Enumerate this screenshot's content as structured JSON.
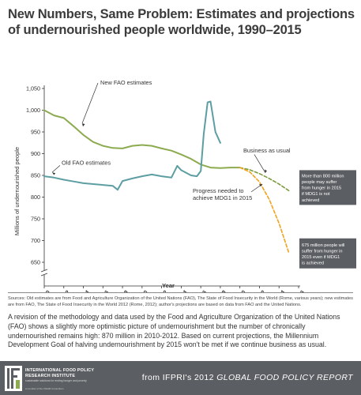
{
  "title": "New Numbers, Same Problem: Estimates and projections of undernourished people worldwide, 1990–2015",
  "chart_data": {
    "type": "line",
    "xlabel": "Year",
    "ylabel": "Millions of undernourished people",
    "xlim": [
      1990,
      2016
    ],
    "ylim": [
      650,
      1050
    ],
    "axis_break": true,
    "x_ticks": [
      "1990",
      "1992",
      "1994",
      "1996",
      "1998",
      "2000",
      "2002",
      "2004",
      "2006",
      "2008",
      "2010",
      "2012",
      "2014",
      "2016"
    ],
    "y_ticks": [
      "650",
      "700",
      "750",
      "800",
      "850",
      "900",
      "950",
      "1,000",
      "1,050"
    ],
    "grid": false,
    "series": [
      {
        "name": "New FAO estimates",
        "color": "#8cab4f",
        "style": "solid",
        "x": [
          1990,
          1991,
          1992,
          1993,
          1994,
          1995,
          1996,
          1997,
          1998,
          1999,
          2000,
          2001,
          2002,
          2003,
          2004,
          2005,
          2006,
          2007,
          2008,
          2009,
          2010
        ],
        "y": [
          1000,
          988,
          982,
          963,
          943,
          927,
          918,
          913,
          912,
          918,
          920,
          918,
          912,
          907,
          898,
          888,
          875,
          868,
          867,
          868,
          868
        ]
      },
      {
        "name": "Old FAO estimates",
        "color": "#5d9ea3",
        "style": "solid",
        "x": [
          1990,
          1991,
          1992,
          1993,
          1994,
          1995,
          1996,
          1997,
          1997.5,
          1998,
          1999,
          2000,
          2001,
          2002,
          2003,
          2003.6,
          2004,
          2005,
          2005.6,
          2006,
          2006.3,
          2006.7,
          2007,
          2007.5,
          2008
        ],
        "y": [
          848,
          845,
          840,
          836,
          832,
          830,
          828,
          826,
          817,
          837,
          843,
          848,
          852,
          848,
          845,
          872,
          862,
          850,
          848,
          860,
          945,
          1018,
          1020,
          950,
          925
        ]
      },
      {
        "name": "Business as usual",
        "color": "#7c9c3d",
        "style": "dashed",
        "x": [
          2010,
          2011,
          2012,
          2013,
          2014,
          2015
        ],
        "y": [
          868,
          863,
          854,
          843,
          830,
          815
        ]
      },
      {
        "name": "Progress needed to achieve MDG1 in 2015",
        "color": "#f2a21b",
        "style": "dashed",
        "x": [
          2010,
          2011,
          2012,
          2013,
          2014,
          2015
        ],
        "y": [
          868,
          858,
          835,
          795,
          740,
          672
        ]
      }
    ],
    "annotations": [
      {
        "key": "new_fao",
        "text": "New FAO estimates"
      },
      {
        "key": "old_fao",
        "text": "Old FAO estimates"
      },
      {
        "key": "bau",
        "text": "Business as usual"
      },
      {
        "key": "mdg",
        "lines": [
          "Progress needed to",
          "achieve MDG1 in 2015"
        ]
      },
      {
        "key": "box1",
        "lines": [
          "More than 800 million",
          "people may suffer",
          "from hunger in 2015",
          "if MDG1 is not",
          "achieved"
        ]
      },
      {
        "key": "box2",
        "lines": [
          "675 million people will",
          "suffer from hunger in",
          "2015 even if MDG1",
          "is achieved"
        ]
      }
    ],
    "callout_color": "#5b5e62"
  },
  "sources": "Sources: Old estimates are from Food and Agriculture Organization of the United Nations (FAO), The State of Food Insecurity in the World (Rome, various years); new estimates are from FAO, The State of Food Insecurity in the World 2012 (Rome, 2012); author's projections are based on data from FAO and the United Nations.",
  "body_text": "A revision of the methodology and data used by the Food and Agriculture Organization of the United Nations (FAO) shows a slightly more optimistic picture of undernourishment but the number of chronically undernourished remains high: 870 million in 2010-2012. Based on current projections, the Millennium Development Goal of halving undernourishment by 2015 won't be met if we continue business as usual.",
  "footer": {
    "org_line1": "INTERNATIONAL FOOD POLICY",
    "org_line2": "RESEARCH INSTITUTE",
    "org_small": "sustainable solutions for ending hunger and poverty",
    "org_tiny": "A member of the CGIAR Consortium",
    "source_prefix": "from IFPRI's 2012 ",
    "source_title": "GLOBAL FOOD POLICY REPORT",
    "colors": {
      "bar": "#5b5e62"
    }
  }
}
